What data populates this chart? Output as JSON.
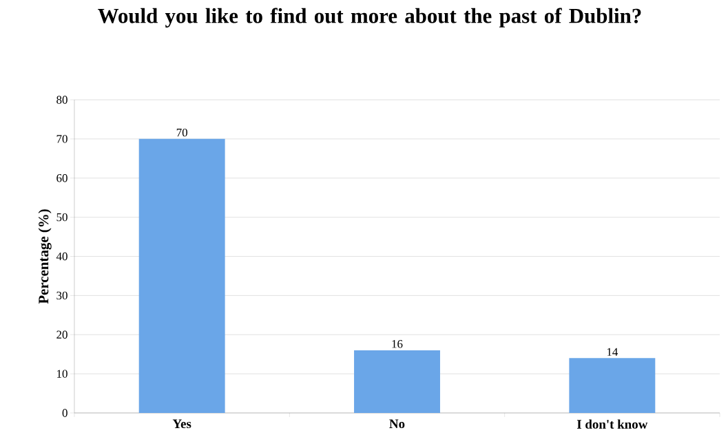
{
  "chart_data": {
    "type": "bar",
    "title": "Would you like to find out more about the past of Dublin?",
    "ylabel": "Percentage (%)",
    "categories": [
      "Yes",
      "No",
      "I don't know"
    ],
    "values": [
      70,
      16,
      14
    ],
    "color": "#6aa6e8",
    "ylim": [
      0,
      80
    ],
    "yticks": [
      0,
      10,
      20,
      30,
      40,
      50,
      60,
      70,
      80
    ],
    "grid": "y",
    "data_labels": true
  }
}
